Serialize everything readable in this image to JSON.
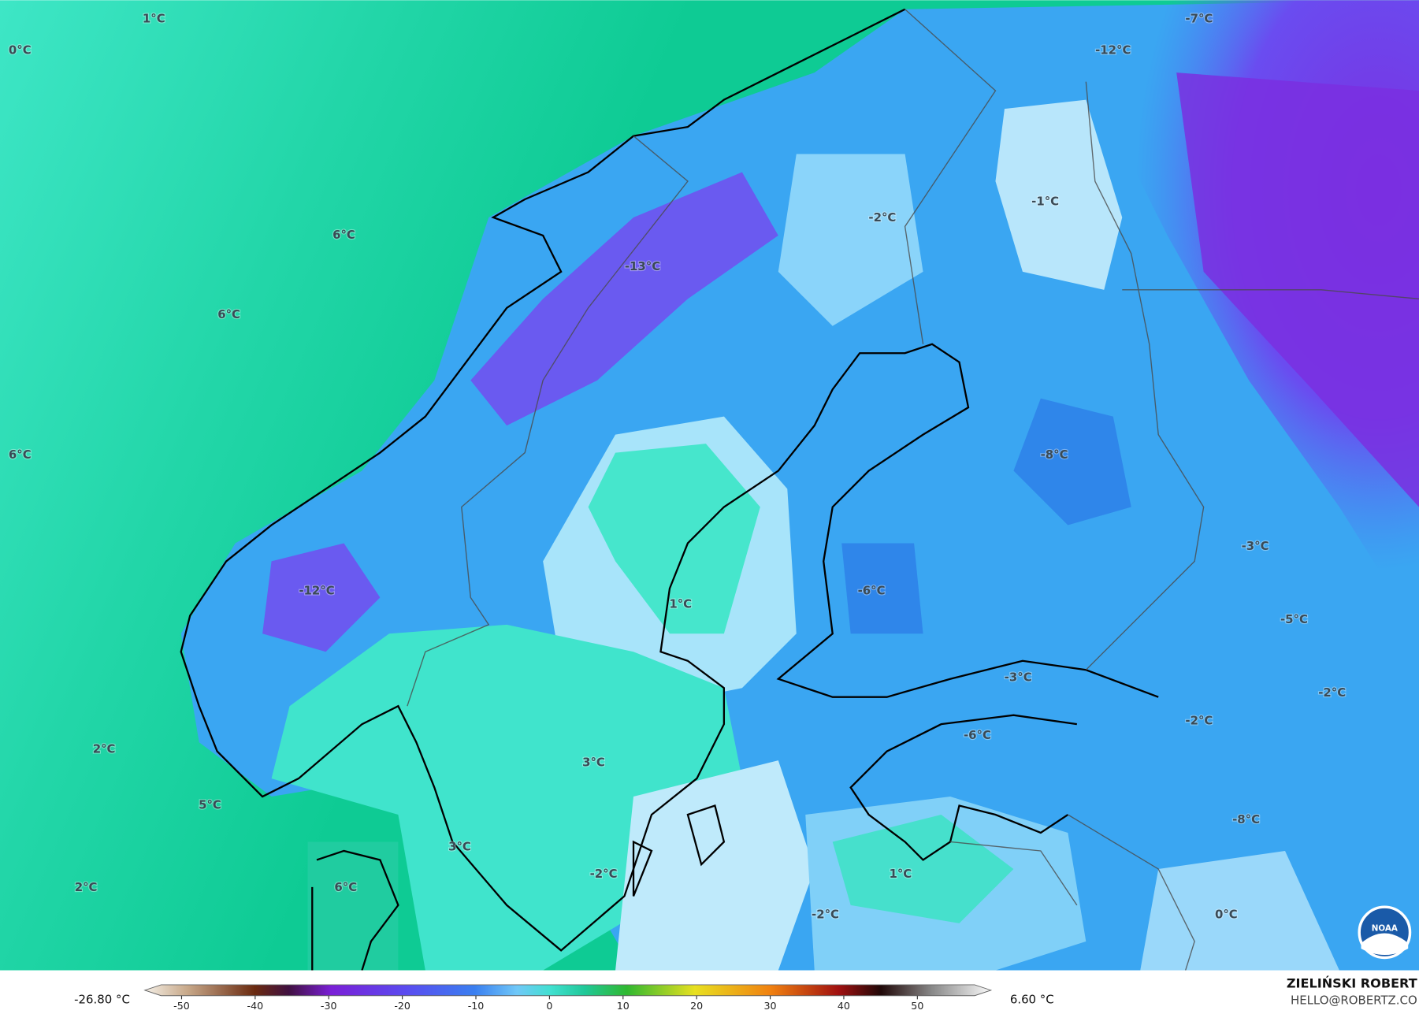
{
  "map_labels": [
    "1°C",
    "0°C",
    "-7°C",
    "-12°C",
    "-1°C",
    "-2°C",
    "6°C",
    "-13°C",
    "6°C",
    "6°C",
    "-8°C",
    "-3°C",
    "-12°C",
    "-6°C",
    "1°C",
    "-5°C",
    "-3°C",
    "-2°C",
    "-2°C",
    "-6°C",
    "2°C",
    "3°C",
    "5°C",
    "-8°C",
    "3°C",
    "-2°C",
    "1°C",
    "2°C",
    "6°C",
    "-2°C",
    "0°C"
  ],
  "colorbar": {
    "min_label": "-26.80 °C",
    "max_label": "6.60 °C",
    "xlim": [
      -55,
      60
    ],
    "ticks": [
      -50,
      -40,
      -30,
      -20,
      -10,
      0,
      10,
      20,
      30,
      40,
      50
    ]
  },
  "credit": {
    "author": "ZIELIŃSKI ROBERT",
    "email": "HELLO@ROBERTZ.CO"
  },
  "logo": "NOAA"
}
